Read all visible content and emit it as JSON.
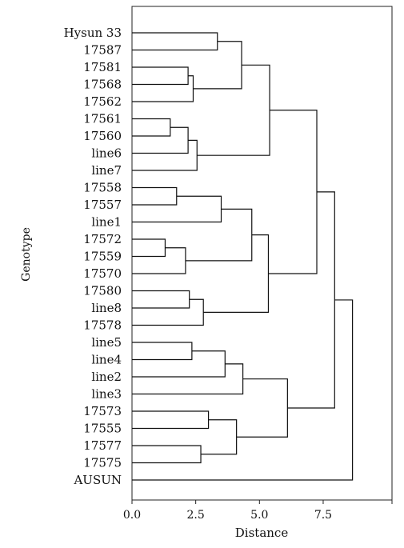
{
  "chart_data": {
    "type": "dendrogram",
    "xlabel": "Distance",
    "ylabel": "Genotype",
    "xlim": [
      0,
      10.2
    ],
    "xticks": [
      "0.0",
      "2.5",
      "5.0",
      "7.5"
    ],
    "xtick_values": [
      0,
      2.5,
      5,
      7.5
    ],
    "leaves": [
      "Hysun 33",
      "17587",
      "17581",
      "17568",
      "17562",
      "17561",
      "17560",
      "line6",
      "line7",
      "17558",
      "17557",
      "line1",
      "17572",
      "17559",
      "17570",
      "17580",
      "line8",
      "17578",
      "line5",
      "line4",
      "line2",
      "line3",
      "17573",
      "17555",
      "17577",
      "17575",
      "AUSUN"
    ],
    "merges": [
      {
        "a": "Hysun 33",
        "b": "17587",
        "height": 3.35
      },
      {
        "a": "17581",
        "b": "17568",
        "height": 2.2
      },
      {
        "a": "m2",
        "b": "17562",
        "height": 2.4
      },
      {
        "a": "m1",
        "b": "m3",
        "height": 4.3
      },
      {
        "a": "17561",
        "b": "17560",
        "height": 1.5
      },
      {
        "a": "m5",
        "b": "line6",
        "height": 2.2
      },
      {
        "a": "m6",
        "b": "line7",
        "height": 2.55
      },
      {
        "a": "m4",
        "b": "m7",
        "height": 5.4
      },
      {
        "a": "17558",
        "b": "17557",
        "height": 1.75
      },
      {
        "a": "m9",
        "b": "line1",
        "height": 3.5
      },
      {
        "a": "17572",
        "b": "17559",
        "height": 1.3
      },
      {
        "a": "m11",
        "b": "17570",
        "height": 2.1
      },
      {
        "a": "m10",
        "b": "m12",
        "height": 4.7
      },
      {
        "a": "17580",
        "b": "line8",
        "height": 2.25
      },
      {
        "a": "m14",
        "b": "17578",
        "height": 2.8
      },
      {
        "a": "m13",
        "b": "m15",
        "height": 5.35
      },
      {
        "a": "m8",
        "b": "m16",
        "height": 7.25
      },
      {
        "a": "line5",
        "b": "line4",
        "height": 2.35
      },
      {
        "a": "m18",
        "b": "line2",
        "height": 3.65
      },
      {
        "a": "m19",
        "b": "line3",
        "height": 4.35
      },
      {
        "a": "17573",
        "b": "17555",
        "height": 3.0
      },
      {
        "a": "17577",
        "b": "17575",
        "height": 2.7
      },
      {
        "a": "m21",
        "b": "m22",
        "height": 4.1
      },
      {
        "a": "m20",
        "b": "m23",
        "height": 6.1
      },
      {
        "a": "m17",
        "b": "m24",
        "height": 7.95
      },
      {
        "a": "m25",
        "b": "AUSUN",
        "height": 8.65
      }
    ]
  }
}
